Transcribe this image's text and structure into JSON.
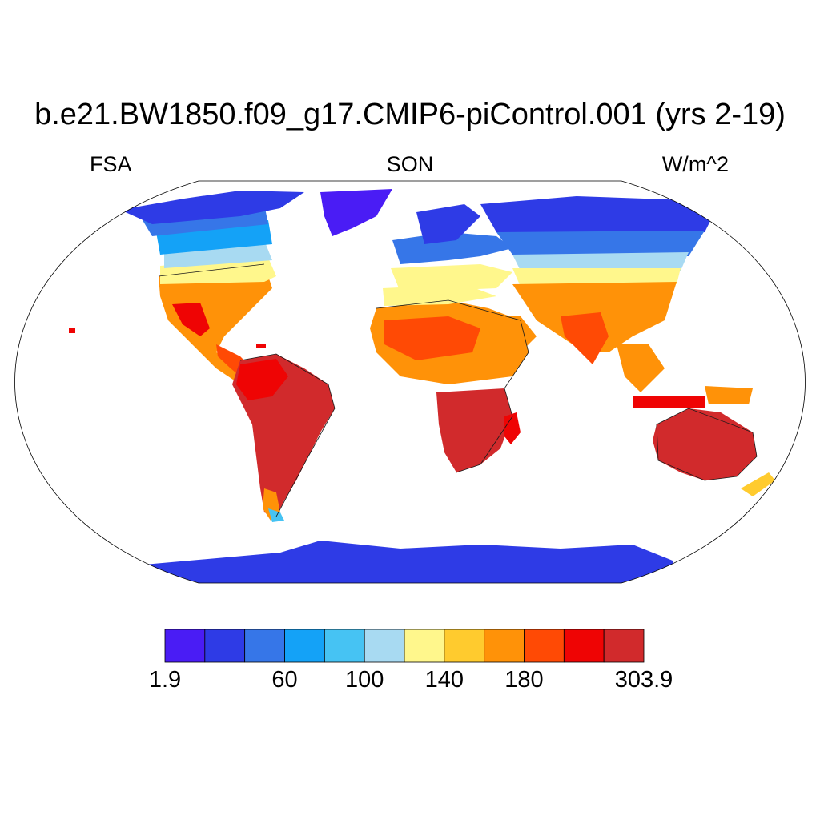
{
  "title": "b.e21.BW1850.f09_g17.CMIP6-piControl.001 (yrs 2-19)",
  "subtitle_left": "FSA",
  "subtitle_center": "SON",
  "subtitle_right": "W/m^2",
  "colorbar": {
    "colors": [
      "#4a1cf5",
      "#2e3be6",
      "#3676e8",
      "#14a2f7",
      "#46c3f3",
      "#a8daf2",
      "#fff78c",
      "#ffcb2e",
      "#ff9208",
      "#ff4a05",
      "#ef0404",
      "#d12a2c"
    ],
    "labels": [
      {
        "text": "1.9",
        "boundary": 0
      },
      {
        "text": "60",
        "boundary": 3
      },
      {
        "text": "100",
        "boundary": 5
      },
      {
        "text": "140",
        "boundary": 7
      },
      {
        "text": "180",
        "boundary": 9
      },
      {
        "text": "303.9",
        "boundary": 12
      }
    ]
  }
}
